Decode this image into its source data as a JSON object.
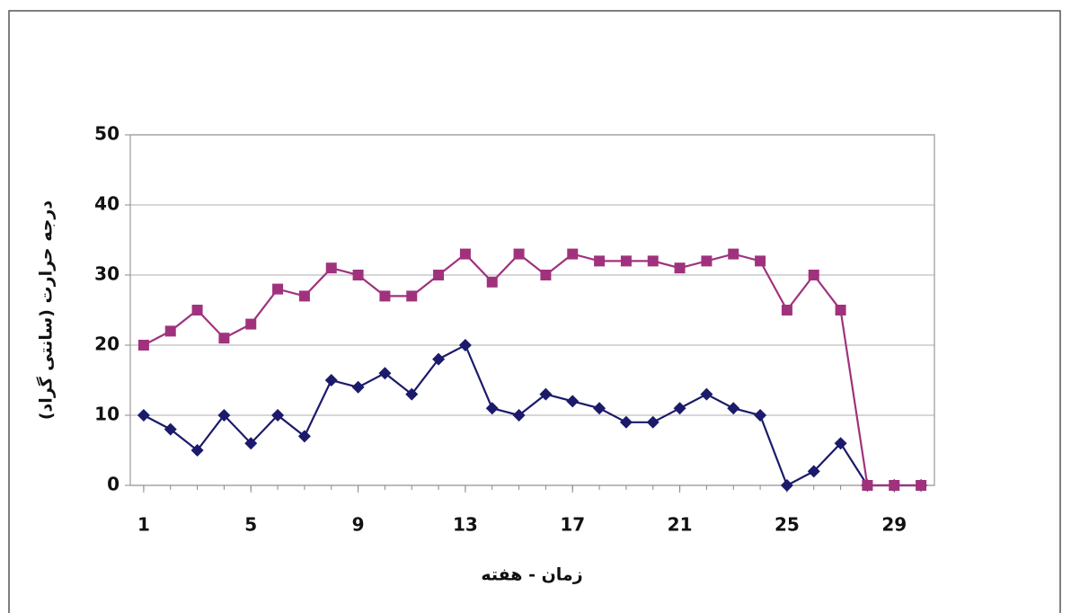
{
  "chart_data": {
    "type": "line",
    "x_label": "زمان - هفته",
    "y_label": "درجه حرارت (سانتی گراد)",
    "x": [
      1,
      2,
      3,
      4,
      5,
      6,
      7,
      8,
      9,
      10,
      11,
      12,
      13,
      14,
      15,
      16,
      17,
      18,
      19,
      20,
      21,
      22,
      23,
      24,
      25,
      26,
      27,
      28,
      29,
      30
    ],
    "series": [
      {
        "color": "#1b1a6b",
        "marker": "diamond",
        "values": [
          10,
          8,
          5,
          10,
          6,
          10,
          7,
          15,
          14,
          16,
          13,
          18,
          20,
          11,
          10,
          13,
          12,
          11,
          9,
          9,
          11,
          13,
          11,
          10,
          0,
          2,
          6,
          0,
          0,
          0
        ]
      },
      {
        "color": "#a0327d",
        "marker": "square",
        "values": [
          20,
          22,
          25,
          21,
          23,
          28,
          27,
          31,
          30,
          27,
          27,
          30,
          33,
          29,
          33,
          30,
          33,
          32,
          32,
          32,
          31,
          32,
          33,
          32,
          25,
          30,
          25,
          0,
          0,
          0
        ]
      }
    ],
    "xlim": [
      0.5,
      30.5
    ],
    "xticks": [
      1,
      5,
      9,
      13,
      17,
      21,
      25,
      29
    ],
    "ylim": [
      0,
      50
    ],
    "yticks": [
      0,
      10,
      20,
      30,
      40,
      50
    ],
    "grid": true
  }
}
